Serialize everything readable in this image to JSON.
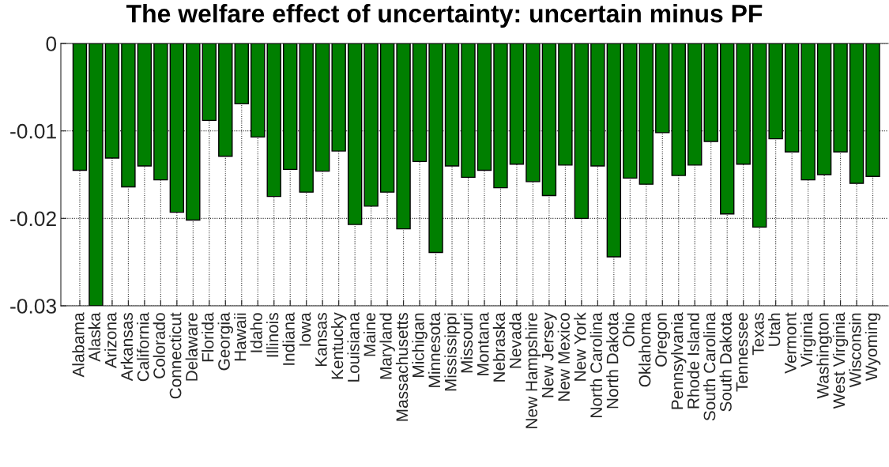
{
  "chart_data": {
    "type": "bar",
    "title": "The welfare effect of uncertainty: uncertain minus PF",
    "categories": [
      "Alabama",
      "Alaska",
      "Arizona",
      "Arkansas",
      "California",
      "Colorado",
      "Connecticut",
      "Delaware",
      "Florida",
      "Georgia",
      "Hawaii",
      "Idaho",
      "Illinois",
      "Indiana",
      "Iowa",
      "Kansas",
      "Kentucky",
      "Louisiana",
      "Maine",
      "Maryland",
      "Massachusetts",
      "Michigan",
      "Minnesota",
      "Mississippi",
      "Missouri",
      "Montana",
      "Nebraska",
      "Nevada",
      "New Hampshire",
      "New Jersey",
      "New Mexico",
      "New York",
      "North Carolina",
      "North Dakota",
      "Ohio",
      "Oklahoma",
      "Oregon",
      "Pennsylvania",
      "Rhode Island",
      "South Carolina",
      "South Dakota",
      "Tennessee",
      "Texas",
      "Utah",
      "Vermont",
      "Virginia",
      "Washington",
      "West Virginia",
      "Wisconsin",
      "Wyoming"
    ],
    "values": [
      -0.0145,
      -0.03,
      -0.0131,
      -0.0164,
      -0.014,
      -0.0156,
      -0.0193,
      -0.0202,
      -0.0088,
      -0.0129,
      -0.0069,
      -0.0107,
      -0.0175,
      -0.0144,
      -0.017,
      -0.0146,
      -0.0123,
      -0.0207,
      -0.0186,
      -0.017,
      -0.0212,
      -0.0135,
      -0.0239,
      -0.014,
      -0.0153,
      -0.0145,
      -0.0165,
      -0.0138,
      -0.0158,
      -0.0174,
      -0.0139,
      -0.02,
      -0.014,
      -0.0244,
      -0.0154,
      -0.0161,
      -0.0102,
      -0.0151,
      -0.0139,
      -0.0112,
      -0.0195,
      -0.0138,
      -0.021,
      -0.0109,
      -0.0124,
      -0.0156,
      -0.015,
      -0.0124,
      -0.016,
      -0.0152
    ],
    "color": "#007f00",
    "ylim": [
      -0.03,
      0
    ],
    "yticks": [
      0,
      -0.01,
      -0.02,
      -0.03
    ],
    "grid": true
  }
}
